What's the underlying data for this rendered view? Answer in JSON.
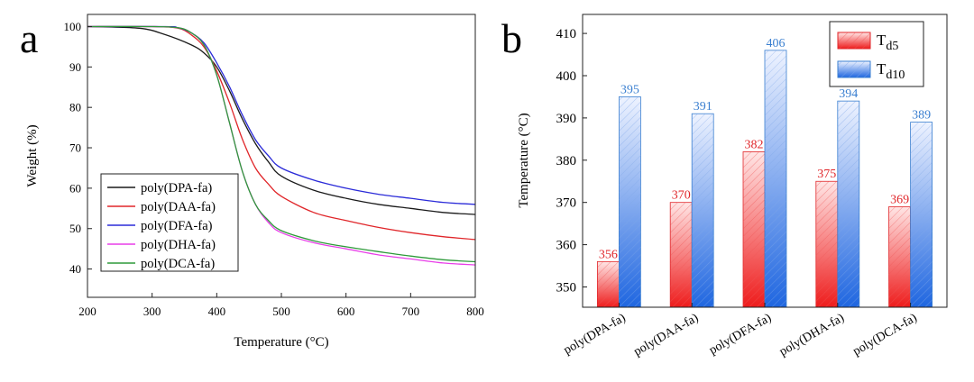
{
  "panels": {
    "a": {
      "label": "a"
    },
    "b": {
      "label": "b"
    }
  },
  "chart_data": [
    {
      "type": "line",
      "title": "",
      "xlabel": "Temperature (°C)",
      "ylabel": "Weight (%)",
      "xlim": [
        200,
        800
      ],
      "ylim": [
        35,
        105
      ],
      "xticks": [
        200,
        300,
        400,
        500,
        600,
        700,
        800
      ],
      "yticks": [
        40,
        50,
        60,
        70,
        80,
        90,
        100
      ],
      "grid": false,
      "legend_position": "bottom-left",
      "series": [
        {
          "name": "poly(DPA-fa)",
          "color": "#1a1a1a",
          "x": [
            200,
            280,
            320,
            360,
            380,
            400,
            420,
            440,
            460,
            480,
            500,
            550,
            600,
            650,
            700,
            750,
            800
          ],
          "y": [
            100,
            99.6,
            98,
            95.5,
            93.5,
            90,
            84,
            77,
            71,
            66.5,
            63,
            59.5,
            57.5,
            56,
            55,
            54,
            53.5
          ]
        },
        {
          "name": "poly(DAA-fa)",
          "color": "#e0262a",
          "x": [
            200,
            300,
            340,
            360,
            380,
            400,
            420,
            440,
            460,
            480,
            500,
            550,
            600,
            650,
            700,
            750,
            800
          ],
          "y": [
            100,
            100,
            99.6,
            98,
            95,
            89,
            81,
            72,
            65,
            61,
            58,
            54,
            52,
            50.3,
            49,
            48,
            47.3
          ]
        },
        {
          "name": "poly(DFA-fa)",
          "color": "#2b2bd8",
          "x": [
            200,
            320,
            340,
            360,
            380,
            400,
            420,
            440,
            460,
            480,
            500,
            550,
            600,
            650,
            700,
            750,
            800
          ],
          "y": [
            100,
            100,
            99.7,
            98.5,
            96,
            91,
            85,
            78,
            72,
            68,
            65,
            62,
            60,
            58.5,
            57.5,
            56.5,
            56
          ]
        },
        {
          "name": "poly(DHA-fa)",
          "color": "#e83ee8",
          "x": [
            200,
            300,
            340,
            360,
            380,
            400,
            420,
            440,
            460,
            480,
            500,
            550,
            600,
            650,
            700,
            750,
            800
          ],
          "y": [
            100,
            100,
            99.7,
            98.5,
            95.5,
            88,
            76,
            64,
            56,
            51.5,
            49,
            46.5,
            45,
            43.5,
            42.5,
            41.5,
            41
          ]
        },
        {
          "name": "poly(DCA-fa)",
          "color": "#2e9a3a",
          "x": [
            200,
            300,
            340,
            360,
            380,
            400,
            420,
            440,
            460,
            480,
            500,
            550,
            600,
            650,
            700,
            750,
            800
          ],
          "y": [
            100,
            100,
            99.7,
            98.5,
            95.5,
            88,
            76,
            64,
            56,
            52,
            49.5,
            47,
            45.5,
            44.3,
            43.2,
            42.3,
            41.8
          ]
        }
      ]
    },
    {
      "type": "bar",
      "title": "",
      "xlabel": "",
      "ylabel": "Temperature (°C)",
      "ylim": [
        345,
        415
      ],
      "yticks": [
        350,
        360,
        370,
        380,
        390,
        400,
        410
      ],
      "grid": false,
      "legend_position": "top-right",
      "categories": [
        "poly(DPA-fa)",
        "poly(DAA-fa)",
        "poly(DFA-fa)",
        "poly(DHA-fa)",
        "poly(DCA-fa)"
      ],
      "series": [
        {
          "name": "Td5",
          "legend_main": "T",
          "legend_sub": "d5",
          "color": "#ee2a2a",
          "label_color": "#e0262a",
          "values": [
            356,
            370,
            382,
            375,
            369
          ]
        },
        {
          "name": "Td10",
          "legend_main": "T",
          "legend_sub": "d10",
          "color": "#2a6fe0",
          "label_color": "#3a7fd0",
          "values": [
            395,
            391,
            406,
            394,
            389
          ]
        }
      ]
    }
  ]
}
